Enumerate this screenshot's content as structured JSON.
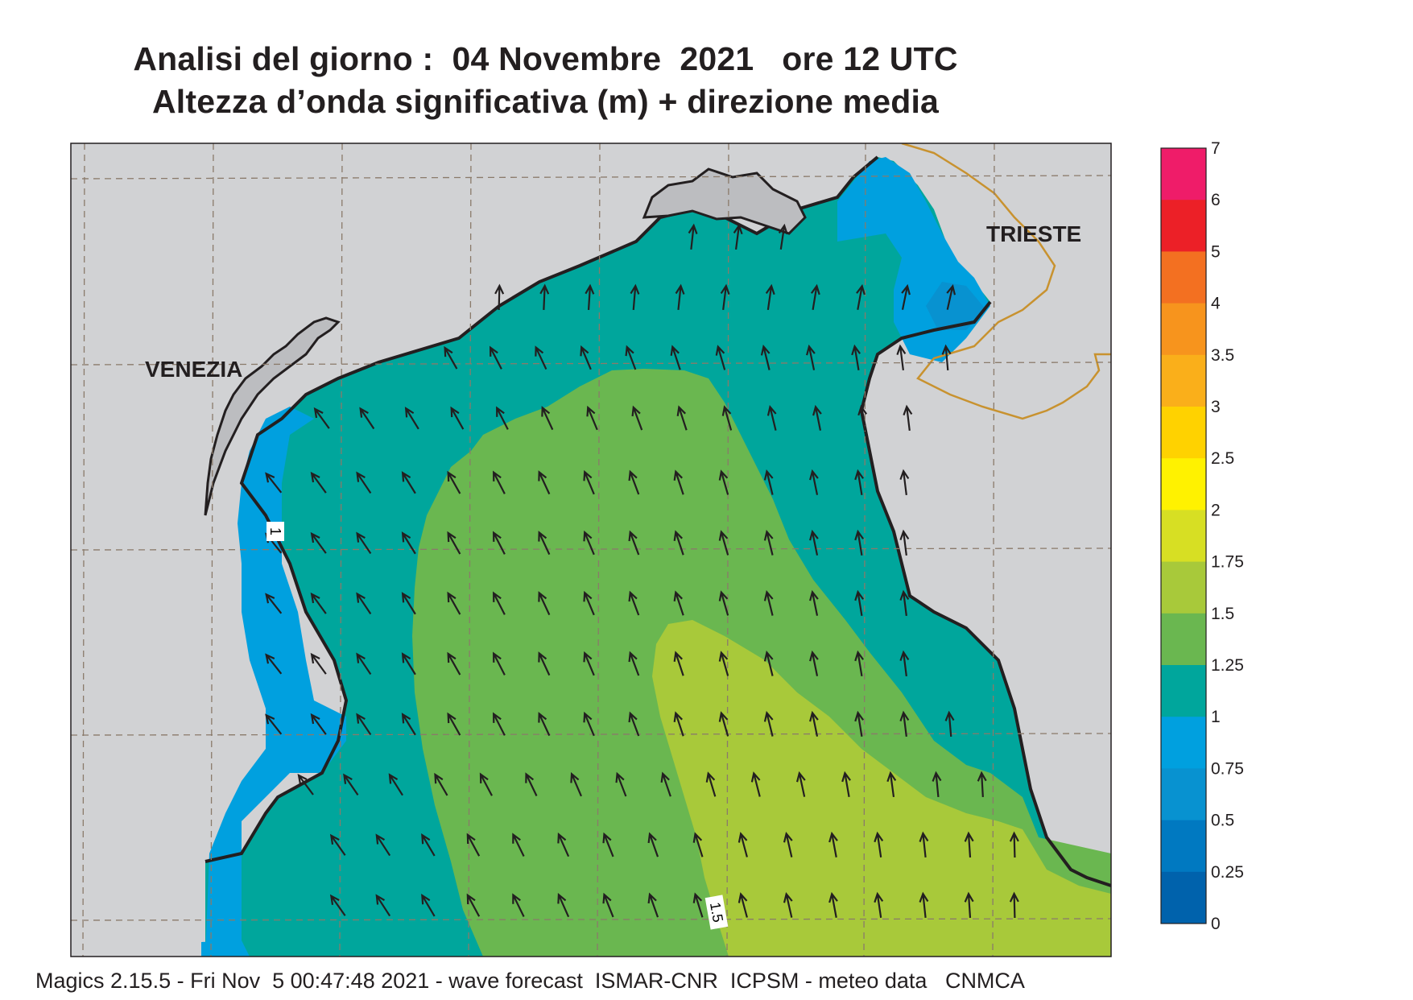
{
  "title": {
    "line1": "Analisi del giorno :  04 Novembre  2021   ore 12 UTC",
    "line2": "Altezza d’onda significativa (m) + direzione media"
  },
  "map": {
    "cities": [
      {
        "name": "VENEZIA"
      },
      {
        "name": "TRIESTE"
      }
    ],
    "contour_labels": [
      "1",
      "1.5"
    ],
    "arrow_direction": "north-west to north",
    "colors": {
      "land": "#d1d2d4",
      "coast": "#231f20",
      "border": "#c8922f"
    }
  },
  "colorbar": {
    "levels": [
      "7",
      "6",
      "5",
      "4",
      "3.5",
      "3",
      "2.5",
      "2",
      "1.75",
      "1.5",
      "1.25",
      "1",
      "0.75",
      "0.5",
      "0.25",
      "0"
    ],
    "colors": [
      "#ef1c69",
      "#ec2027",
      "#f37021",
      "#f7941d",
      "#faaf1a",
      "#ffd200",
      "#fff200",
      "#d7df23",
      "#a8c93a",
      "#6ab750",
      "#00a69c",
      "#00a0df",
      "#0892d0",
      "#0079c1",
      "#0062ac"
    ]
  },
  "footer": {
    "text": "Magics 2.15.5 - Fri Nov  5 00:47:48 2021 - wave forecast  ISMAR-CNR  ICPSM - meteo data   CNMCA"
  }
}
